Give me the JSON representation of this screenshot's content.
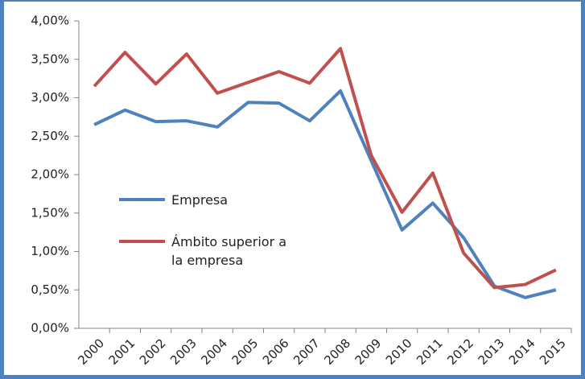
{
  "chart_data": {
    "type": "line",
    "categories": [
      "2000",
      "2001",
      "2002",
      "2003",
      "2004",
      "2005",
      "2006",
      "2007",
      "2008",
      "2009",
      "2010",
      "2011",
      "2012",
      "2013",
      "2014",
      "2015"
    ],
    "series": [
      {
        "name": "Empresa",
        "color": "#4f81bd",
        "values": [
          2.65,
          2.84,
          2.69,
          2.7,
          2.62,
          2.94,
          2.93,
          2.7,
          3.09,
          2.18,
          1.28,
          1.63,
          1.18,
          0.55,
          0.4,
          0.5
        ]
      },
      {
        "name": "Ámbito superior a la empresa",
        "color": "#c0504d",
        "values": [
          3.15,
          3.59,
          3.18,
          3.57,
          3.06,
          3.2,
          3.34,
          3.19,
          3.64,
          2.25,
          1.51,
          2.02,
          0.98,
          0.53,
          0.57,
          0.76
        ]
      }
    ],
    "ylim": [
      0,
      4
    ],
    "yticks": [
      {
        "value": 0,
        "label": "0,00%"
      },
      {
        "value": 0.5,
        "label": "0,50%"
      },
      {
        "value": 1,
        "label": "1,00%"
      },
      {
        "value": 1.5,
        "label": "1,50%"
      },
      {
        "value": 2,
        "label": "2,00%"
      },
      {
        "value": 2.5,
        "label": "2,50%"
      },
      {
        "value": 3,
        "label": "3,00%"
      },
      {
        "value": 3.5,
        "label": "3,50%"
      },
      {
        "value": 4,
        "label": "4,00%"
      }
    ],
    "grid": false
  }
}
